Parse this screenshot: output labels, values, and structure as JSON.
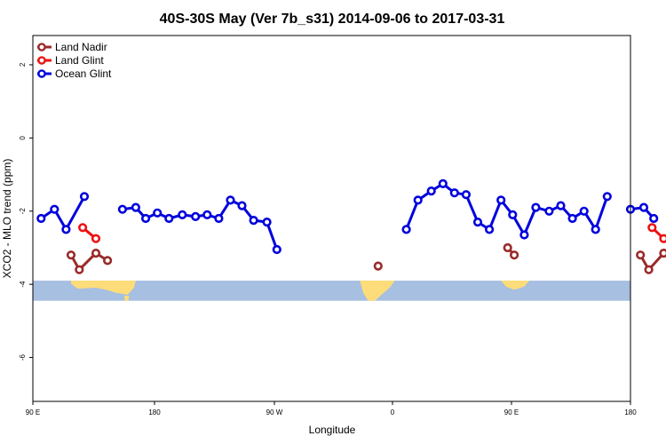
{
  "chart_data": {
    "type": "line",
    "title": "40S-30S May (Ver 7b_s31)   2014-09-06 to 2017-03-31",
    "xlabel": "Longitude",
    "ylabel": "XCO2 - MLO trend (ppm)",
    "xlim": [
      90,
      450
    ],
    "ylim": [
      -7.2,
      2.8
    ],
    "x_ticks": [
      {
        "value": 90,
        "label": "90 E"
      },
      {
        "value": 180,
        "label": "180"
      },
      {
        "value": 270,
        "label": "90 W"
      },
      {
        "value": 360,
        "label": "0"
      },
      {
        "value": 450,
        "label": "90 E"
      },
      {
        "value": 540,
        "label": "180"
      }
    ],
    "y_ticks": [
      {
        "value": 2,
        "label": "2"
      },
      {
        "value": 0,
        "label": "0"
      },
      {
        "value": -2,
        "label": "-2"
      },
      {
        "value": -4,
        "label": "-4"
      },
      {
        "value": -6,
        "label": "-6"
      }
    ],
    "legend_position": "top-left",
    "map_strip": {
      "y_top": -3.9,
      "y_bottom": -4.45,
      "ocean_color": "#a7bfe0",
      "land_color": "#fddc7a"
    },
    "series": [
      {
        "name": "Land Nadir",
        "color": "#9a2a2a",
        "points": [
          [
            113,
            -3.2
          ],
          [
            118,
            -3.6
          ],
          [
            128,
            -3.15
          ],
          [
            135,
            -3.35
          ],
          null,
          [
            298,
            -3.5
          ],
          null,
          [
            376,
            -3.0
          ],
          [
            380,
            -3.2
          ],
          null,
          [
            456,
            -3.2
          ],
          [
            461,
            -3.6
          ],
          [
            470,
            -3.15
          ],
          [
            477,
            -3.35
          ]
        ]
      },
      {
        "name": "Land Glint",
        "color": "#ee1111",
        "points": [
          [
            120,
            -2.45
          ],
          [
            128,
            -2.75
          ],
          null,
          [
            463,
            -2.45
          ],
          [
            470,
            -2.75
          ]
        ]
      },
      {
        "name": "Ocean Glint",
        "color": "#0000dd",
        "points": [
          [
            95,
            -2.2
          ],
          [
            103,
            -1.95
          ],
          [
            110,
            -2.5
          ],
          [
            121,
            -1.6
          ],
          null,
          [
            144,
            -1.95
          ],
          [
            152,
            -1.9
          ],
          [
            158,
            -2.2
          ],
          [
            165,
            -2.05
          ],
          [
            172,
            -2.2
          ],
          [
            180,
            -2.1
          ],
          [
            188,
            -2.15
          ],
          [
            195,
            -2.1
          ],
          [
            202,
            -2.2
          ],
          [
            209,
            -1.7
          ],
          [
            216,
            -1.85
          ],
          [
            223,
            -2.25
          ],
          [
            231,
            -2.3
          ],
          [
            237,
            -3.05
          ],
          null,
          [
            315,
            -2.5
          ],
          [
            322,
            -1.7
          ],
          [
            330,
            -1.45
          ],
          [
            337,
            -1.25
          ],
          [
            344,
            -1.5
          ],
          [
            351,
            -1.55
          ],
          [
            358,
            -2.3
          ],
          [
            365,
            -2.5
          ],
          [
            372,
            -1.7
          ],
          [
            379,
            -2.1
          ],
          [
            386,
            -2.65
          ],
          [
            393,
            -1.9
          ],
          [
            401,
            -2.0
          ],
          [
            408,
            -1.85
          ],
          [
            415,
            -2.2
          ],
          [
            422,
            -2.0
          ],
          [
            429,
            -2.5
          ],
          [
            436,
            -1.6
          ],
          null,
          [
            450,
            -1.95
          ],
          [
            458,
            -1.9
          ],
          [
            464,
            -2.2
          ]
        ]
      }
    ]
  }
}
